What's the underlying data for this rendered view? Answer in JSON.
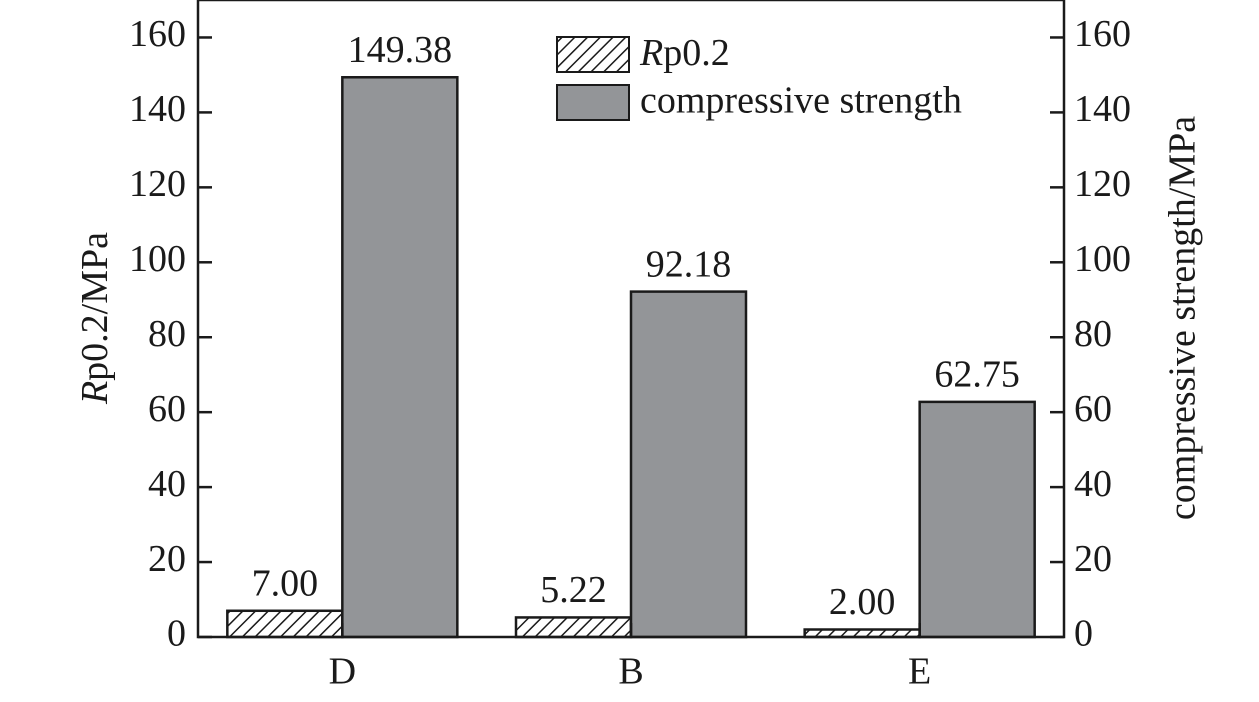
{
  "chart_data": {
    "type": "bar",
    "categories": [
      "D",
      "B",
      "E"
    ],
    "series": [
      {
        "name": "Rp0.2",
        "name_italic": "R",
        "name_rest": "p0.2",
        "values": [
          7.0,
          5.22,
          2.0
        ],
        "labels": [
          "7.00",
          "5.22",
          "2.00"
        ],
        "pattern": "hatch"
      },
      {
        "name": "compressive strength",
        "values": [
          149.38,
          92.18,
          62.75
        ],
        "labels": [
          "149.38",
          "92.18",
          "62.75"
        ],
        "color": "#939598"
      }
    ],
    "ylabel_left": {
      "italic": "R",
      "rest": "p0.2/MPa"
    },
    "ylabel_right": "compressive strength/MPa",
    "ylim": [
      0,
      170
    ],
    "yticks": [
      0,
      20,
      40,
      60,
      80,
      100,
      120,
      140,
      160
    ],
    "legend_placement": "top-center",
    "grid": false
  }
}
